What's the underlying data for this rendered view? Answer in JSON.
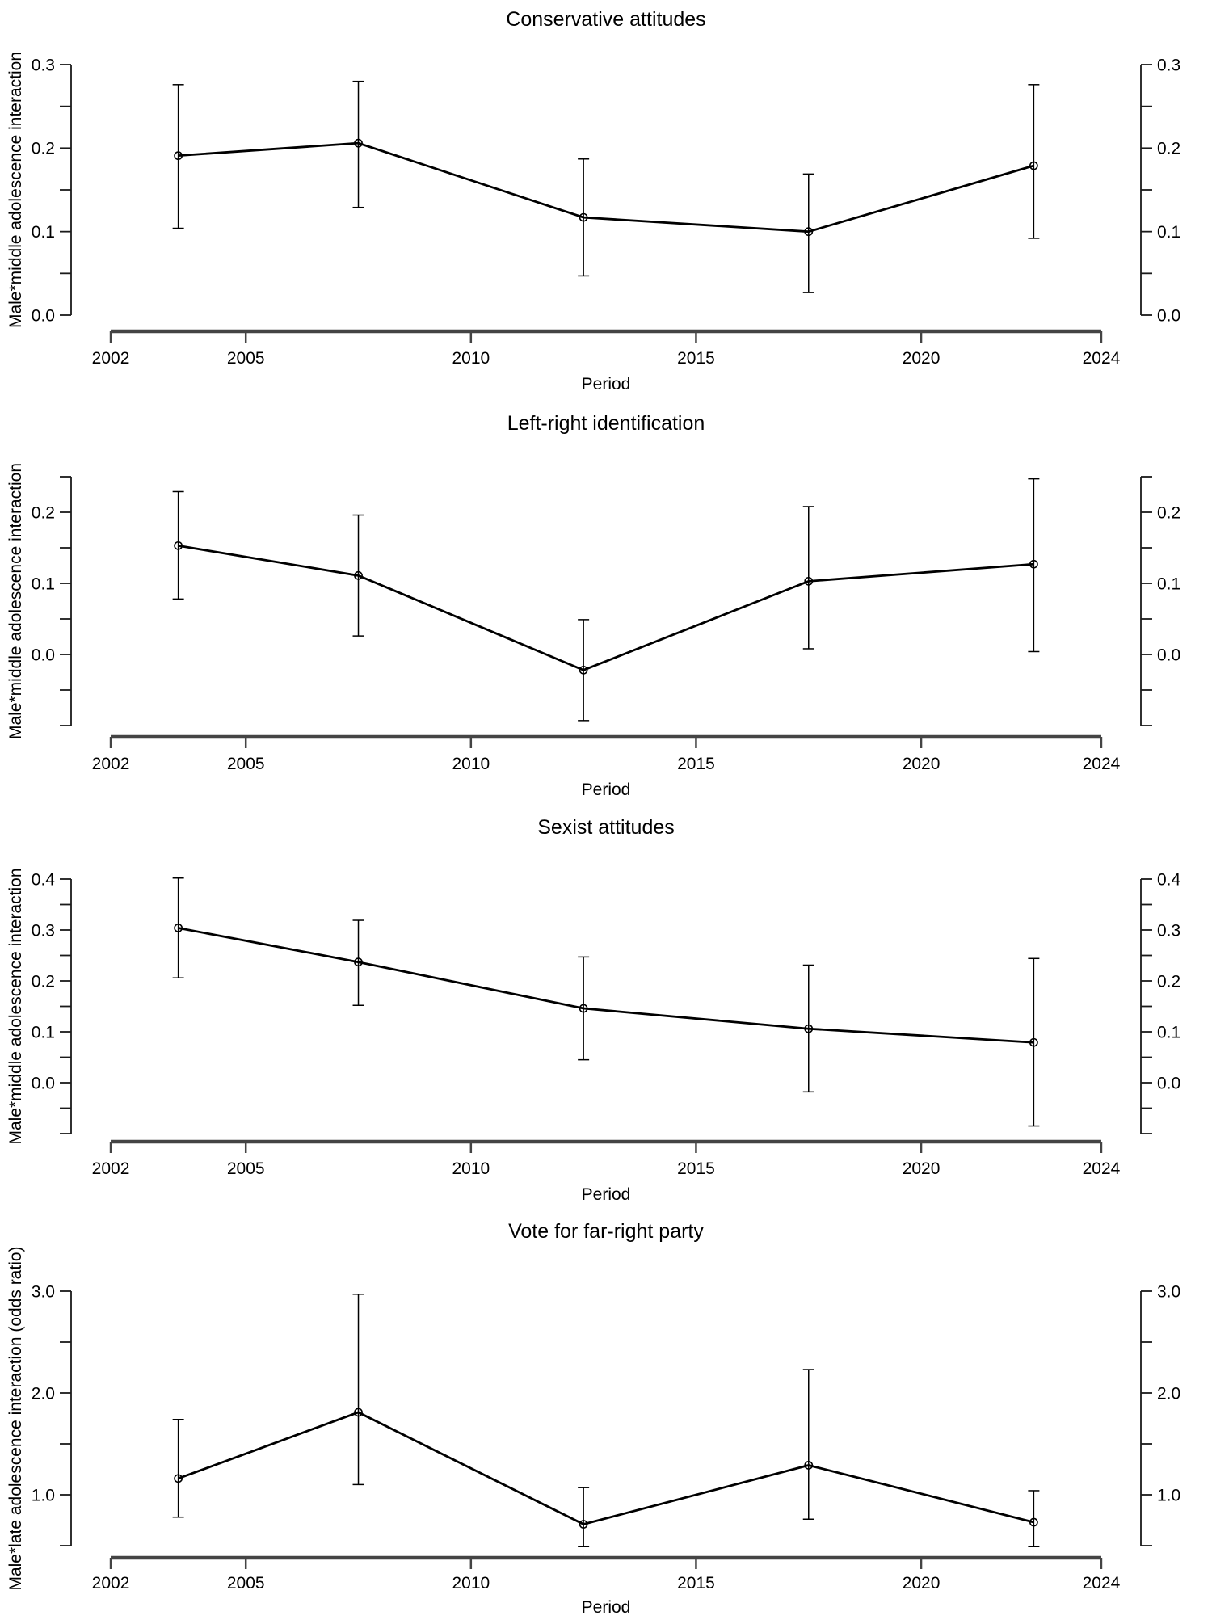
{
  "figure": {
    "background": "#ffffff",
    "text_color": "#000000",
    "x_axis_color": "#444444",
    "y_axis_color": "#1a1a1a",
    "series_color": "#000000"
  },
  "chart_data": [
    {
      "type": "line",
      "title": "Conservative attitudes",
      "xlabel": "Period",
      "ylabel": "Male*middle adolescence interaction",
      "marker": "open-circle",
      "error_bars": true,
      "grid": false,
      "legend": false,
      "x": [
        2003.5,
        2007.5,
        2012.5,
        2017.5,
        2022.5
      ],
      "estimates": [
        0.191,
        0.206,
        0.117,
        0.1,
        0.179
      ],
      "ci_low": [
        0.104,
        0.129,
        0.047,
        0.027,
        0.092
      ],
      "ci_high": [
        0.276,
        0.28,
        0.187,
        0.169,
        0.276
      ],
      "x_axis": {
        "ticks": [
          2002,
          2005,
          2010,
          2015,
          2020,
          2024
        ],
        "tick_labels": [
          "2002",
          "2005",
          "2010",
          "2015",
          "2020",
          "2024"
        ],
        "range": [
          2001.12,
          2024.88
        ]
      },
      "y_axis": {
        "sides": "both",
        "tick_min": 0.0,
        "tick_max": 0.3,
        "minor_step": 0.05,
        "labeled_ticks": [
          {
            "value": 0.0,
            "label": "0.0"
          },
          {
            "value": 0.1,
            "label": "0.1"
          },
          {
            "value": 0.2,
            "label": "0.2"
          },
          {
            "value": 0.3,
            "label": "0.3"
          }
        ]
      }
    },
    {
      "type": "line",
      "title": "Left-right identification",
      "xlabel": "Period",
      "ylabel": "Male*middle adolescence interaction",
      "marker": "open-circle",
      "error_bars": true,
      "grid": false,
      "legend": false,
      "x": [
        2003.5,
        2007.5,
        2012.5,
        2017.5,
        2022.5
      ],
      "estimates": [
        0.153,
        0.111,
        -0.022,
        0.103,
        0.127
      ],
      "ci_low": [
        0.078,
        0.026,
        -0.093,
        0.008,
        0.004
      ],
      "ci_high": [
        0.229,
        0.196,
        0.049,
        0.208,
        0.247
      ],
      "x_axis": {
        "ticks": [
          2002,
          2005,
          2010,
          2015,
          2020,
          2024
        ],
        "tick_labels": [
          "2002",
          "2005",
          "2010",
          "2015",
          "2020",
          "2024"
        ],
        "range": [
          2001.12,
          2024.88
        ]
      },
      "y_axis": {
        "sides": "both",
        "tick_min": -0.1,
        "tick_max": 0.25,
        "minor_step": 0.05,
        "labeled_ticks": [
          {
            "value": 0.0,
            "label": "0.0"
          },
          {
            "value": 0.1,
            "label": "0.1"
          },
          {
            "value": 0.2,
            "label": "0.2"
          }
        ]
      }
    },
    {
      "type": "line",
      "title": "Sexist attitudes",
      "xlabel": "Period",
      "ylabel": "Male*middle adolescence interaction",
      "marker": "open-circle",
      "error_bars": true,
      "grid": false,
      "legend": false,
      "x": [
        2003.5,
        2007.5,
        2012.5,
        2017.5,
        2022.5
      ],
      "estimates": [
        0.304,
        0.237,
        0.146,
        0.106,
        0.079
      ],
      "ci_low": [
        0.206,
        0.152,
        0.045,
        -0.018,
        -0.085
      ],
      "ci_high": [
        0.402,
        0.319,
        0.247,
        0.231,
        0.244
      ],
      "x_axis": {
        "ticks": [
          2002,
          2005,
          2010,
          2015,
          2020,
          2024
        ],
        "tick_labels": [
          "2002",
          "2005",
          "2010",
          "2015",
          "2020",
          "2024"
        ],
        "range": [
          2001.12,
          2024.88
        ]
      },
      "y_axis": {
        "sides": "both",
        "tick_min": -0.1,
        "tick_max": 0.4,
        "minor_step": 0.05,
        "labeled_ticks": [
          {
            "value": 0.0,
            "label": "0.0"
          },
          {
            "value": 0.1,
            "label": "0.1"
          },
          {
            "value": 0.2,
            "label": "0.2"
          },
          {
            "value": 0.3,
            "label": "0.3"
          },
          {
            "value": 0.4,
            "label": "0.4"
          }
        ]
      }
    },
    {
      "type": "line",
      "title": "Vote for far-right party",
      "xlabel": "Period",
      "ylabel": "Male*late adolescence interaction (odds ratio)",
      "marker": "open-circle",
      "error_bars": true,
      "grid": false,
      "legend": false,
      "x": [
        2003.5,
        2007.5,
        2012.5,
        2017.5,
        2022.5
      ],
      "estimates": [
        1.16,
        1.81,
        0.71,
        1.29,
        0.73
      ],
      "ci_low": [
        0.78,
        1.1,
        0.49,
        0.76,
        0.49
      ],
      "ci_high": [
        1.74,
        2.97,
        1.07,
        2.23,
        1.04
      ],
      "x_axis": {
        "ticks": [
          2002,
          2005,
          2010,
          2015,
          2020,
          2024
        ],
        "tick_labels": [
          "2002",
          "2005",
          "2010",
          "2015",
          "2020",
          "2024"
        ],
        "range": [
          2001.12,
          2024.88
        ]
      },
      "y_axis": {
        "sides": "both",
        "tick_min": 0.5,
        "tick_max": 3.0,
        "minor_step": 0.5,
        "labeled_ticks": [
          {
            "value": 1.0,
            "label": "1.0"
          },
          {
            "value": 2.0,
            "label": "2.0"
          },
          {
            "value": 3.0,
            "label": "3.0"
          }
        ]
      }
    }
  ]
}
